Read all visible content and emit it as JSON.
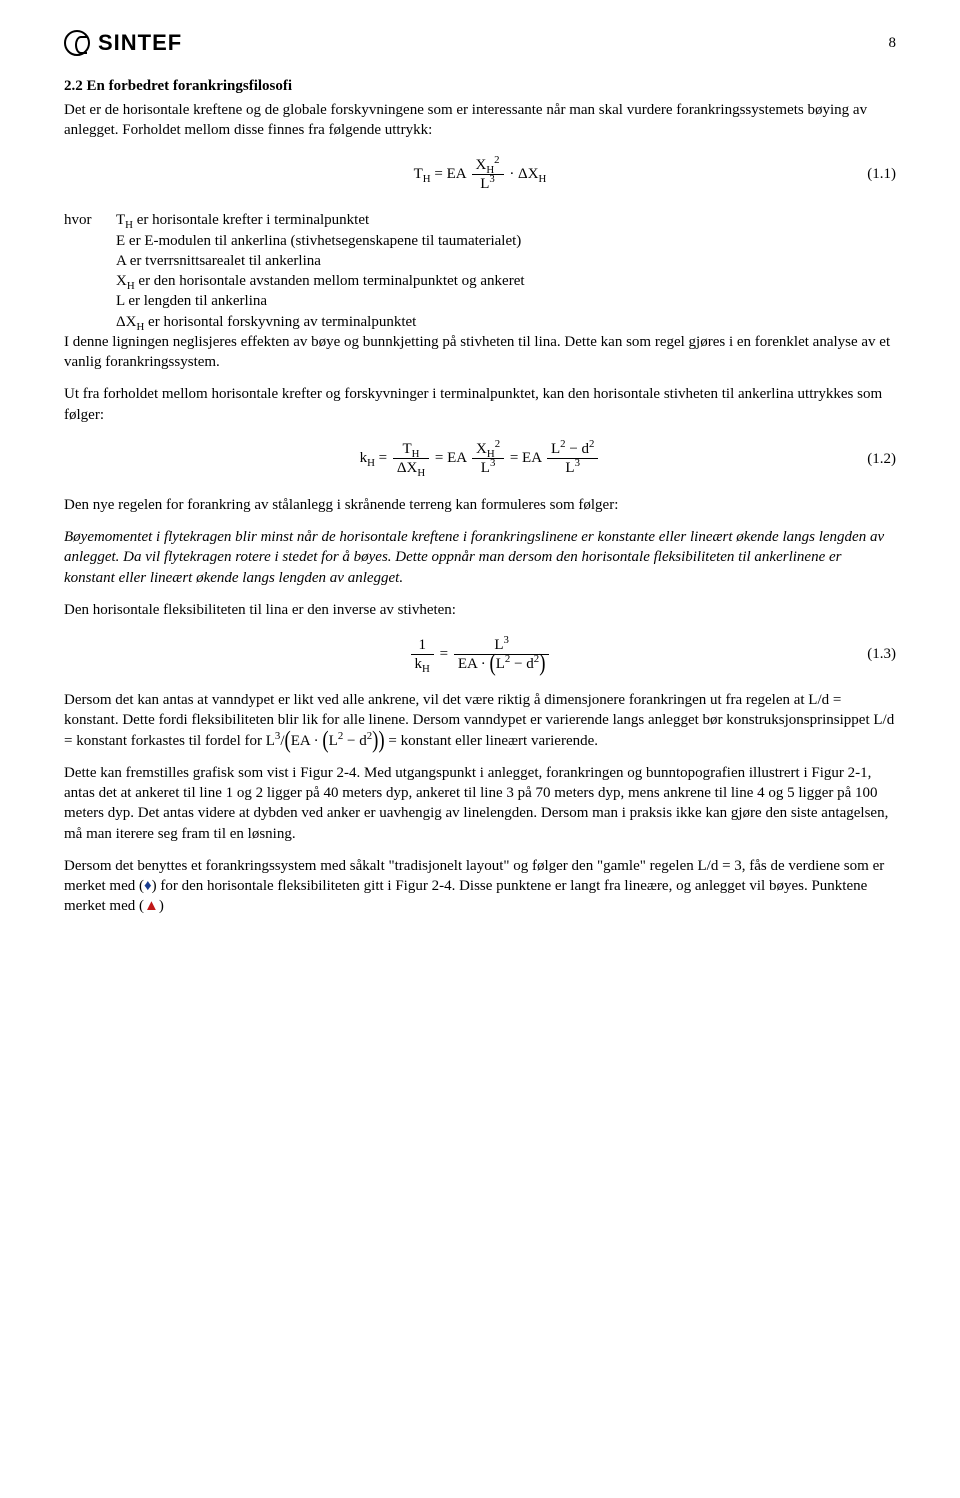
{
  "header": {
    "logo_text": "SINTEF",
    "page_number": "8"
  },
  "section": {
    "title": "2.2 En forbedret forankringsfilosofi",
    "intro": "Det er de horisontale kreftene og de globale forskyvningene som er interessante når man skal vurdere forankringssystemets bøying av anlegget. Forholdet mellom disse finnes fra følgende uttrykk:"
  },
  "eq1": {
    "number": "(1.1)"
  },
  "defs": {
    "hvor": "hvor",
    "l1": "T",
    "l1_sub": "H",
    "l1_rest": " er horisontale krefter i terminalpunktet",
    "l2": "E er E-modulen til ankerlina (stivhetsegenskapene til taumaterialet)",
    "l3": "A er tverrsnittsarealet til ankerlina",
    "l4": "X",
    "l4_sub": "H",
    "l4_rest": " er den horisontale avstanden mellom terminalpunktet og ankeret",
    "l5": "L er lengden til ankerlina",
    "l6": "ΔX",
    "l6_sub": "H",
    "l6_rest": " er horisontal forskyvning av terminalpunktet"
  },
  "p2": "I denne ligningen neglisjeres effekten av bøye og bunnkjetting på stivheten til lina. Dette kan som regel gjøres i en forenklet analyse av et vanlig forankringssystem.",
  "p3": "Ut fra forholdet mellom horisontale krefter og forskyvninger i terminalpunktet, kan den horisontale stivheten til ankerlina uttrykkes som følger:",
  "eq2": {
    "number": "(1.2)"
  },
  "p4": "Den nye regelen for forankring av stålanlegg i skrånende terreng kan formuleres som følger:",
  "p5_italic": "Bøyemomentet i flytekragen blir minst når de horisontale kreftene i forankringslinene er konstante eller lineært økende langs lengden av anlegget. Da vil flytekragen rotere i stedet for å bøyes. Dette oppnår man dersom den horisontale fleksibiliteten til ankerlinene er konstant eller lineært økende langs lengden av anlegget.",
  "p6": "Den horisontale fleksibiliteten til lina er den inverse av stivheten:",
  "eq3": {
    "number": "(1.3)"
  },
  "p7a": "Dersom det kan antas at vanndypet er likt ved alle ankrene, vil det være riktig å dimensjonere forankringen ut fra regelen at L/d = konstant. Dette fordi fleksibiliteten blir lik for alle linene. Dersom vanndypet er varierende langs anlegget bør konstruksjonsprinsippet L/d = konstant forkastes til fordel for ",
  "p7b": " = konstant eller lineært varierende.",
  "p8": "Dette kan fremstilles grafisk som vist i Figur 2-4. Med utgangspunkt i anlegget, forankringen og bunntopografien illustrert i Figur 2-1, antas det at ankeret til line 1 og 2 ligger på 40 meters dyp, ankeret til line 3 på 70 meters dyp, mens ankrene til line 4 og 5 ligger på 100 meters dyp. Det antas videre at dybden ved anker er uavhengig av linelengden. Dersom man i praksis ikke kan gjøre den siste antagelsen, må man iterere seg fram til en løsning.",
  "p9a": "Dersom det benyttes et forankringssystem med såkalt \"tradisjonelt layout\" og følger den \"gamle\" regelen L/d = 3, fås de verdiene som er merket med (",
  "p9b": ") for den horisontale fleksibiliteten gitt i Figur 2-4. Disse punktene er langt fra lineære, og anlegget vil bøyes. Punktene merket med (",
  "p9c": ")"
}
